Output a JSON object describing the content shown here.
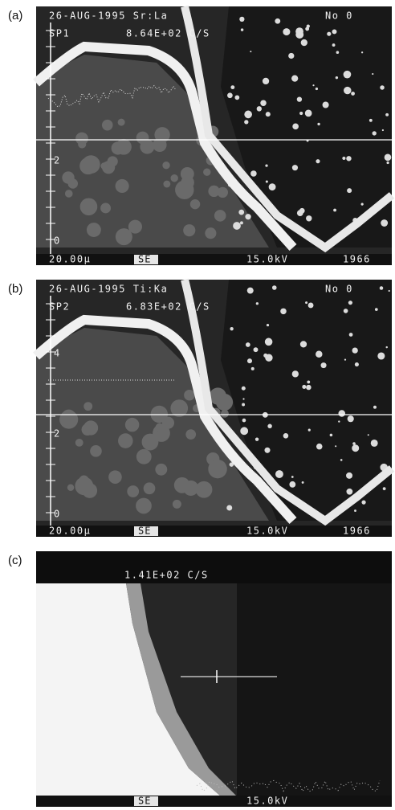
{
  "panels": [
    {
      "label": "(a)",
      "header": "26-AUG-1995 Sr:La",
      "number": "No 0",
      "spectrum": "SP1",
      "count_rate": "8.64E+02 C/S",
      "axis_labels": [
        "2",
        "0"
      ],
      "scale": "20.00µ",
      "mode": "SE",
      "voltage": "15.0kV",
      "frame": "1966"
    },
    {
      "label": "(b)",
      "header": "26-AUG-1995 Ti:Ka",
      "number": "No 0",
      "spectrum": "SP2",
      "count_rate": "6.83E+02 C/S",
      "axis_labels": [
        "4",
        "2",
        "0"
      ],
      "scale": "20.00µ",
      "mode": "SE",
      "voltage": "15.0kV",
      "frame": "1966"
    },
    {
      "label": "(c)",
      "count_rate": "1.41E+02 C/S",
      "mode": "SE",
      "voltage": "15.0kV"
    }
  ]
}
